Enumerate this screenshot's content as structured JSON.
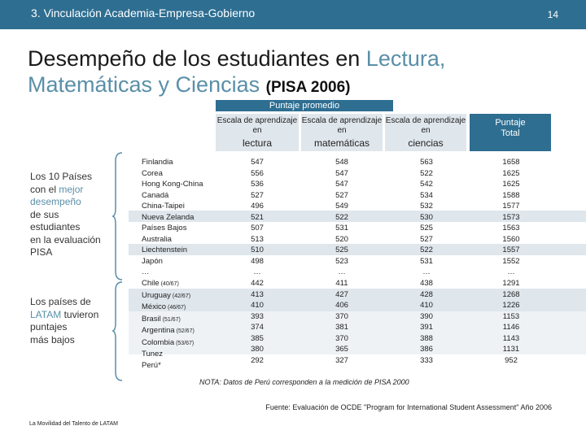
{
  "header": {
    "section_title": "3. Vinculación Academia-Empresa-Gobierno",
    "page_number": "14",
    "bar_color": "#2e6e91"
  },
  "title": {
    "part1": "Desempeño de los estudiantes en",
    "part2_highlight": "Lectura,",
    "part3_highlight": "Matemáticas y Ciencias",
    "part4": "(PISA 2006)"
  },
  "table": {
    "puntaje_header": "Puntaje promedio",
    "col_sub": "Escala de aprendizaje en",
    "col_lectura": "lectura",
    "col_matematicas": "matemáticas",
    "col_ciencias": "ciencias",
    "col_total_line1": "Puntaje",
    "col_total_line2": "Total",
    "countries": [
      "Finlandia",
      "Corea",
      "Hong Kong-China",
      "Canadá",
      "China-Taipei",
      "Nueva Zelanda",
      "Países Bajos",
      "Australia",
      "Liechtenstein",
      "Japón",
      "…",
      "Chile",
      "Uruguay",
      "México",
      "Brasil",
      "Argentina",
      "Colombia",
      "Tunez",
      "Perú*"
    ],
    "country_tags": [
      "",
      "",
      "",
      "",
      "",
      "",
      "",
      "",
      "",
      "",
      "",
      "(40/67)",
      "(42/67)",
      "(46/67)",
      "(51/67)",
      "(52/67)",
      "(53/67)",
      "",
      ""
    ],
    "lectura": [
      "547",
      "556",
      "536",
      "527",
      "496",
      "521",
      "507",
      "513",
      "510",
      "498",
      "…",
      "442",
      "413",
      "410",
      "393",
      "374",
      "385",
      "380",
      "292"
    ],
    "matematicas": [
      "548",
      "547",
      "547",
      "527",
      "549",
      "522",
      "531",
      "520",
      "525",
      "523",
      "…",
      "411",
      "427",
      "406",
      "370",
      "381",
      "370",
      "365",
      "327"
    ],
    "ciencias": [
      "563",
      "522",
      "542",
      "534",
      "532",
      "530",
      "525",
      "527",
      "522",
      "531",
      "…",
      "438",
      "428",
      "410",
      "390",
      "391",
      "388",
      "386",
      "333"
    ],
    "total": [
      "1658",
      "1625",
      "1625",
      "1588",
      "1577",
      "1573",
      "1563",
      "1560",
      "1557",
      "1552",
      "…",
      "1291",
      "1268",
      "1226",
      "1153",
      "1146",
      "1143",
      "1131",
      "952"
    ]
  },
  "side": {
    "group1_l1": "Los 10 Países",
    "group1_l2_pre": "con el",
    "group1_l2_hl": "mejor",
    "group1_l3_hl": "desempeño",
    "group1_l4": "de sus",
    "group1_l5": "estudiantes",
    "group1_l6": "en la evaluación",
    "group1_l7": "PISA",
    "group2_l1": "Los países de",
    "group2_l2_hl": "LATAM",
    "group2_l2_post": "tuvieron",
    "group2_l3": "puntajes",
    "group2_l4": "más bajos"
  },
  "note": "NOTA: Datos de Perú corresponden a la medición de PISA 2000",
  "source": "Fuente: Evaluación de OCDE \"Program for International Student Assessment\" Año 2006",
  "footer": "La Movilidad del Talento de LATAM"
}
